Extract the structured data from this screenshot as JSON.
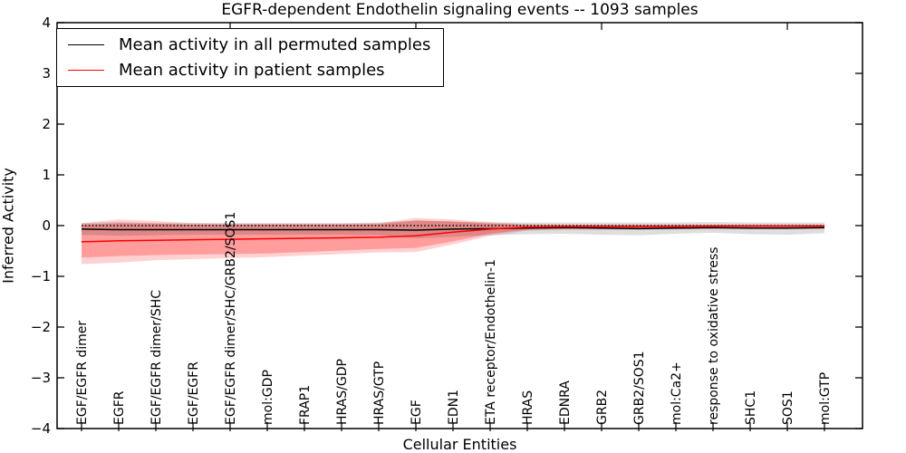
{
  "title": "EGFR-dependent Endothelin signaling events -- 1093 samples",
  "axes": {
    "ylabel": "Inferred Activity",
    "xlabel": "Cellular Entities"
  },
  "legend": {
    "entries": [
      {
        "label": "Mean activity in all permuted samples",
        "color": "#000000"
      },
      {
        "label": "Mean activity in patient samples",
        "color": "#ff0000"
      }
    ]
  },
  "chart_data": {
    "type": "line",
    "title": "EGFR-dependent Endothelin signaling events -- 1093 samples",
    "xlabel": "Cellular Entities",
    "ylabel": "Inferred Activity",
    "ylim": [
      -4,
      4
    ],
    "y_ticks": [
      4,
      3,
      2,
      1,
      0,
      -1,
      -2,
      -3,
      -4
    ],
    "grid": false,
    "legend_position": "upper left",
    "categories": [
      "EGF/EGFR dimer",
      "EGFR",
      "EGF/EGFR dimer/SHC",
      "EGF/EGFR",
      "EGF/EGFR dimer/SHC/GRB2/SOS1",
      "mol:GDP",
      "FRAP1",
      "HRAS/GDP",
      "HRAS/GTP",
      "EGF",
      "EDN1",
      "ETA receptor/Endothelin-1",
      "HRAS",
      "EDNRA",
      "GRB2",
      "GRB2/SOS1",
      "mol:Ca2+",
      "response to oxidative stress",
      "SHC1",
      "SOS1",
      "mol:GTP"
    ],
    "series": [
      {
        "name": "Mean activity in all permuted samples",
        "color": "#000000",
        "values": [
          -0.07,
          -0.08,
          -0.08,
          -0.08,
          -0.08,
          -0.08,
          -0.08,
          -0.08,
          -0.08,
          -0.09,
          -0.07,
          -0.06,
          -0.05,
          -0.04,
          -0.05,
          -0.06,
          -0.05,
          -0.04,
          -0.05,
          -0.05,
          -0.04
        ]
      },
      {
        "name": "Mean activity in patient samples",
        "color": "#ff0000",
        "values": [
          -0.32,
          -0.3,
          -0.29,
          -0.28,
          -0.27,
          -0.26,
          -0.25,
          -0.24,
          -0.23,
          -0.2,
          -0.13,
          -0.07,
          -0.03,
          -0.02,
          -0.02,
          -0.02,
          -0.02,
          -0.01,
          -0.01,
          -0.01,
          -0.01
        ]
      }
    ],
    "bands": [
      {
        "name": "patient-range-outer",
        "color": "#ff0000",
        "opacity": 0.18,
        "upper": [
          0.05,
          0.12,
          0.09,
          0.05,
          0.04,
          0.04,
          0.04,
          0.04,
          0.05,
          0.15,
          0.12,
          0.07,
          0.03,
          0.02,
          0.02,
          0.02,
          0.02,
          0.02,
          0.02,
          0.02,
          0.02
        ],
        "lower": [
          -0.76,
          -0.73,
          -0.68,
          -0.66,
          -0.64,
          -0.62,
          -0.59,
          -0.56,
          -0.53,
          -0.52,
          -0.37,
          -0.2,
          -0.1,
          -0.08,
          -0.08,
          -0.08,
          -0.07,
          -0.07,
          -0.07,
          -0.07,
          -0.07
        ]
      },
      {
        "name": "patient-range-inner",
        "color": "#ff0000",
        "opacity": 0.25,
        "upper": [
          0.02,
          0.05,
          0.04,
          0.02,
          0.02,
          0.02,
          0.02,
          0.02,
          0.03,
          0.1,
          0.08,
          0.04,
          0.01,
          0.01,
          0.01,
          0.01,
          0.01,
          0.01,
          0.01,
          0.01,
          0.01
        ],
        "lower": [
          -0.63,
          -0.6,
          -0.58,
          -0.57,
          -0.56,
          -0.55,
          -0.52,
          -0.49,
          -0.46,
          -0.44,
          -0.31,
          -0.16,
          -0.08,
          -0.06,
          -0.06,
          -0.06,
          -0.05,
          -0.05,
          -0.05,
          -0.05,
          -0.05
        ]
      },
      {
        "name": "permuted-range",
        "color": "#000000",
        "opacity": 0.13,
        "upper": [
          0.05,
          0.07,
          0.05,
          0.05,
          0.05,
          0.05,
          0.05,
          0.05,
          0.06,
          0.1,
          0.08,
          0.06,
          0.06,
          0.06,
          0.06,
          0.06,
          0.06,
          0.07,
          0.06,
          0.06,
          0.06
        ],
        "lower": [
          -0.18,
          -0.2,
          -0.19,
          -0.18,
          -0.18,
          -0.18,
          -0.18,
          -0.18,
          -0.19,
          -0.25,
          -0.22,
          -0.19,
          -0.17,
          -0.16,
          -0.18,
          -0.19,
          -0.16,
          -0.14,
          -0.17,
          -0.18,
          -0.15
        ]
      }
    ],
    "reference_line": {
      "y": 0,
      "style": "dotted",
      "color": "#000000"
    },
    "top_tick_indices": [
      4,
      9,
      14,
      19
    ]
  }
}
